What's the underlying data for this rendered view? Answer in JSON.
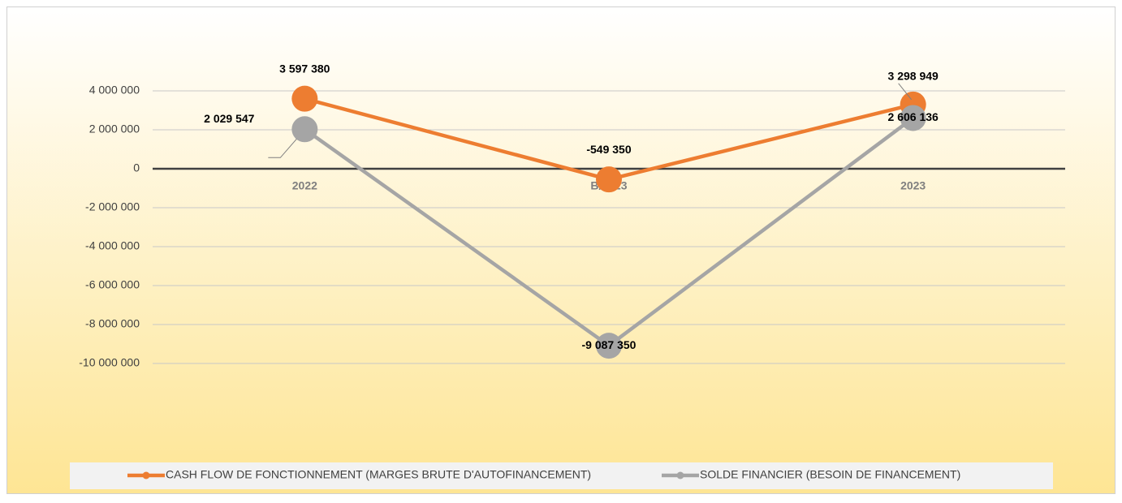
{
  "chart_data": {
    "type": "line",
    "categories": [
      "2022",
      "B/2023",
      "2023"
    ],
    "series": [
      {
        "name": "CASH FLOW DE FONCTIONNEMENT (MARGES BRUTE D'AUTOFINANCEMENT)",
        "color": "#ed7d31",
        "values": [
          3597380,
          -549350,
          3298949
        ],
        "value_labels": [
          "3 597 380",
          "-549 350",
          "3 298 949"
        ]
      },
      {
        "name": "SOLDE FINANCIER (BESOIN DE FINANCEMENT)",
        "color": "#a5a5a5",
        "values": [
          2029547,
          -9087350,
          2606136
        ],
        "value_labels": [
          "2 029 547",
          "-9 087 350",
          "2 606 136"
        ]
      }
    ],
    "ylim": [
      -10000000,
      4000000
    ],
    "yticks": [
      {
        "value": 4000000,
        "label": "4 000 000"
      },
      {
        "value": 2000000,
        "label": "2 000 000"
      },
      0,
      {
        "value": -2000000,
        "label": "-2 000 000"
      },
      {
        "value": -4000000,
        "label": "-4 000 000"
      },
      {
        "value": -6000000,
        "label": "-6 000 000"
      },
      {
        "value": -8000000,
        "label": "-8 000 000"
      },
      {
        "value": -10000000,
        "label": "-10 000 000"
      }
    ],
    "grid": true,
    "legend": "bottom"
  }
}
